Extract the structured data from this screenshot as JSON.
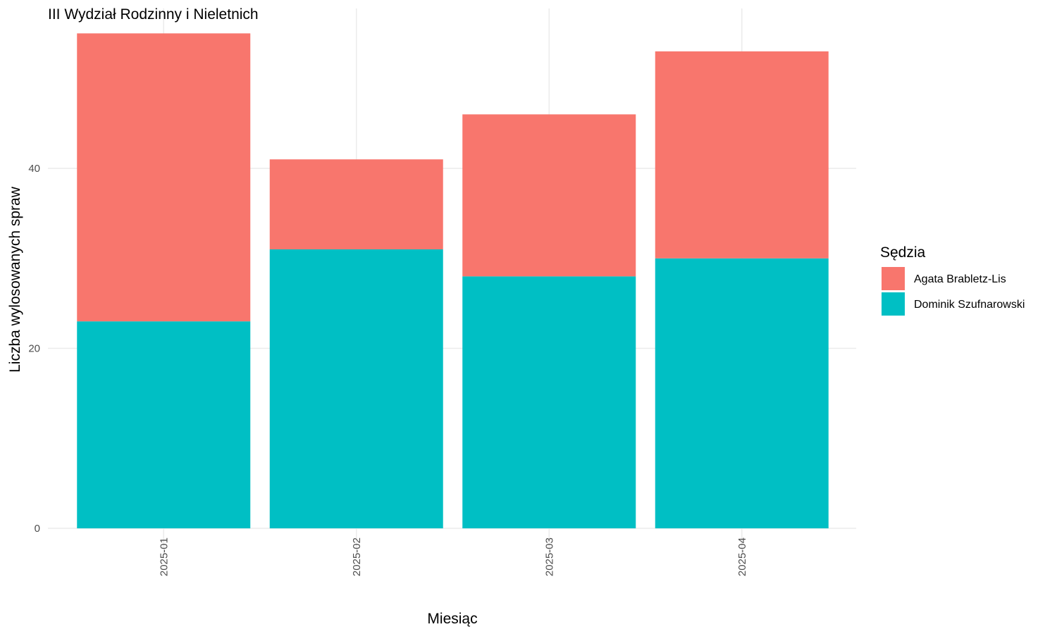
{
  "chart_data": {
    "type": "bar",
    "stacked": true,
    "title": "III Wydział Rodzinny i Nieletnich",
    "xlabel": "Miesiąc",
    "ylabel": "Liczba wylosowanych spraw",
    "categories": [
      "2025-01",
      "2025-02",
      "2025-03",
      "2025-04"
    ],
    "series": [
      {
        "name": "Dominik Szufnarowski",
        "color": "#00BFC4",
        "values": [
          23,
          31,
          28,
          30
        ]
      },
      {
        "name": "Agata Brabletz-Lis",
        "color": "#F8766D",
        "values": [
          32,
          10,
          18,
          23
        ]
      }
    ],
    "ylim": [
      0,
      57.5
    ],
    "yticks": [
      0,
      20,
      40
    ],
    "grid": true,
    "legend": {
      "title": "Sędzia",
      "placement": "right",
      "order": [
        "Agata Brabletz-Lis",
        "Dominik Szufnarowski"
      ]
    }
  }
}
